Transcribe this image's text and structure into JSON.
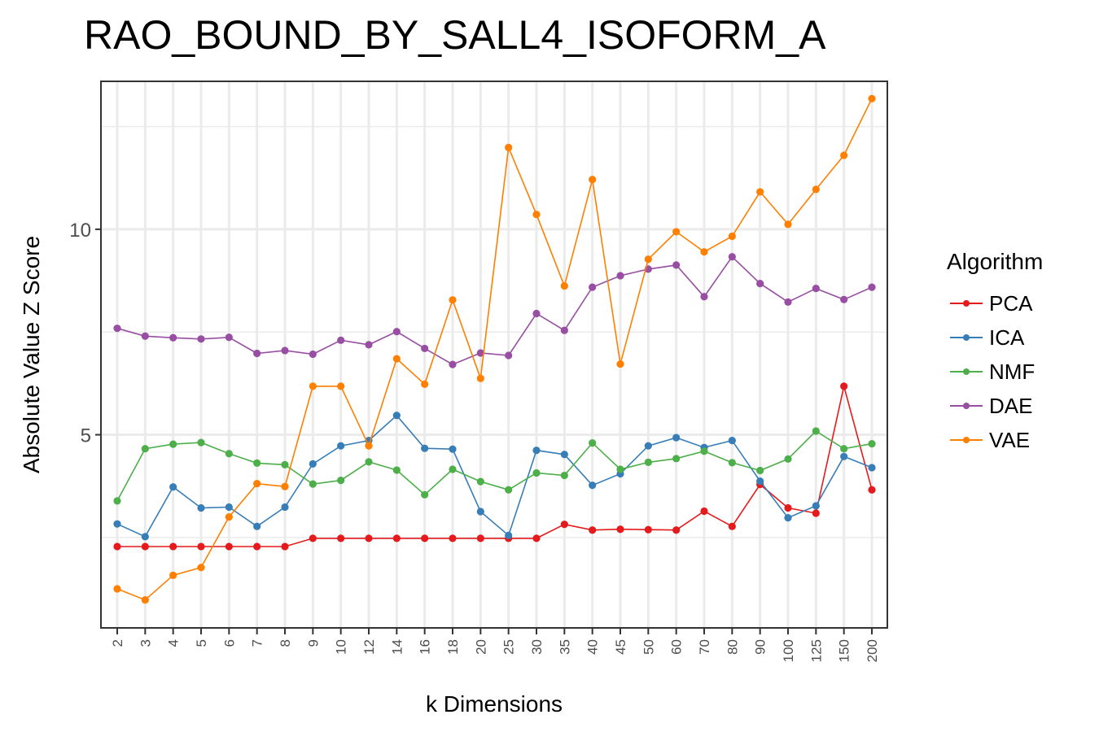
{
  "chart_data": {
    "type": "line",
    "title": "RAO_BOUND_BY_SALL4_ISOFORM_A",
    "xlabel": "k Dimensions",
    "ylabel": "Absolute Value Z Score",
    "categories": [
      "2",
      "3",
      "4",
      "5",
      "6",
      "7",
      "8",
      "9",
      "10",
      "12",
      "14",
      "16",
      "18",
      "20",
      "25",
      "30",
      "35",
      "40",
      "45",
      "50",
      "60",
      "70",
      "80",
      "90",
      "100",
      "125",
      "150",
      "200"
    ],
    "ylim": [
      0.3,
      13.6
    ],
    "yticks": [
      5,
      10
    ],
    "grid": true,
    "legend_title": "Algorithm",
    "legend_position": "right",
    "series": [
      {
        "name": "PCA",
        "color": "#E41A1C",
        "values": [
          2.28,
          2.28,
          2.28,
          2.28,
          2.28,
          2.28,
          2.28,
          2.48,
          2.48,
          2.48,
          2.48,
          2.48,
          2.48,
          2.48,
          2.48,
          2.48,
          2.82,
          2.68,
          2.7,
          2.69,
          2.68,
          3.14,
          2.77,
          3.79,
          3.22,
          3.09,
          6.18,
          3.66
        ]
      },
      {
        "name": "ICA",
        "color": "#377EB8",
        "values": [
          2.83,
          2.52,
          3.73,
          3.22,
          3.24,
          2.77,
          3.24,
          4.29,
          4.73,
          4.86,
          5.47,
          4.67,
          4.65,
          3.13,
          2.55,
          4.62,
          4.52,
          3.77,
          4.05,
          4.73,
          4.93,
          4.69,
          4.86,
          3.87,
          2.98,
          3.27,
          4.47,
          4.2
        ]
      },
      {
        "name": "NMF",
        "color": "#4DAF4A",
        "values": [
          3.39,
          4.66,
          4.77,
          4.81,
          4.54,
          4.31,
          4.27,
          3.8,
          3.89,
          4.34,
          4.14,
          3.54,
          4.16,
          3.86,
          3.66,
          4.07,
          4.01,
          4.8,
          4.16,
          4.33,
          4.42,
          4.6,
          4.32,
          4.13,
          4.41,
          5.09,
          4.66,
          4.78
        ]
      },
      {
        "name": "DAE",
        "color": "#984EA3",
        "values": [
          7.59,
          7.4,
          7.36,
          7.33,
          7.37,
          6.98,
          7.05,
          6.96,
          7.3,
          7.19,
          7.51,
          7.1,
          6.71,
          6.99,
          6.93,
          7.95,
          7.54,
          8.59,
          8.87,
          9.03,
          9.13,
          8.36,
          9.33,
          8.68,
          8.23,
          8.56,
          8.29,
          8.59
        ]
      },
      {
        "name": "VAE",
        "color": "#FF7F00",
        "values": [
          1.25,
          0.98,
          1.58,
          1.77,
          3.0,
          3.81,
          3.74,
          6.18,
          6.18,
          4.73,
          6.85,
          6.23,
          8.28,
          6.37,
          11.99,
          10.36,
          8.62,
          11.21,
          6.72,
          9.27,
          9.94,
          9.45,
          9.83,
          10.91,
          10.12,
          10.97,
          11.8,
          13.18
        ]
      }
    ]
  }
}
